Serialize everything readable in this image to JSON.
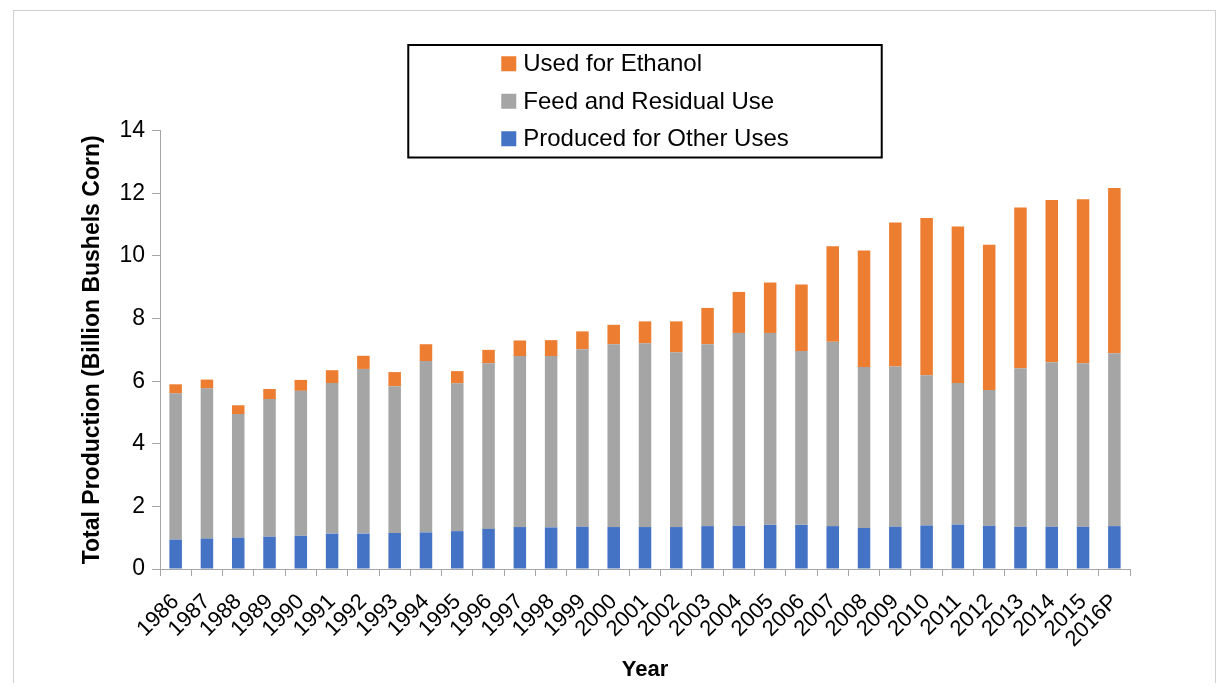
{
  "chart_data": {
    "type": "bar",
    "stacked": true,
    "xlabel": "Year",
    "ylabel": "Total Production (Billion Bushels Corn)",
    "categories": [
      "1986",
      "1987",
      "1988",
      "1989",
      "1990",
      "1991",
      "1992",
      "1993",
      "1994",
      "1995",
      "1996",
      "1997",
      "1998",
      "1999",
      "2000",
      "2001",
      "2002",
      "2003",
      "2004",
      "2005",
      "2006",
      "2007",
      "2008",
      "2009",
      "2010",
      "2011",
      "2012",
      "2013",
      "2014",
      "2015",
      "2016P"
    ],
    "series": [
      {
        "name": "Produced for Other Uses",
        "color": "#4472c4",
        "values": [
          0.94,
          0.97,
          1.0,
          1.03,
          1.06,
          1.13,
          1.13,
          1.15,
          1.17,
          1.21,
          1.28,
          1.34,
          1.33,
          1.35,
          1.34,
          1.34,
          1.34,
          1.37,
          1.38,
          1.41,
          1.41,
          1.37,
          1.31,
          1.35,
          1.39,
          1.42,
          1.38,
          1.35,
          1.35,
          1.35,
          1.37
        ]
      },
      {
        "name": "Feed and Residual Use",
        "color": "#a5a5a5",
        "values": [
          4.67,
          4.8,
          3.95,
          4.4,
          4.63,
          4.81,
          5.26,
          4.69,
          5.47,
          4.72,
          5.29,
          5.46,
          5.47,
          5.67,
          5.84,
          5.87,
          5.58,
          5.81,
          6.16,
          6.13,
          5.55,
          5.89,
          5.14,
          5.12,
          4.8,
          4.52,
          4.34,
          5.06,
          5.25,
          5.22,
          5.52
        ]
      },
      {
        "name": "Used for Ethanol",
        "color": "#ed7d31",
        "values": [
          0.29,
          0.28,
          0.28,
          0.32,
          0.35,
          0.41,
          0.42,
          0.45,
          0.54,
          0.39,
          0.43,
          0.5,
          0.51,
          0.57,
          0.62,
          0.7,
          0.99,
          1.16,
          1.31,
          1.61,
          2.13,
          3.05,
          3.72,
          4.6,
          5.02,
          5.0,
          4.64,
          5.14,
          5.19,
          5.24,
          5.28
        ]
      }
    ],
    "ylim": [
      0,
      14
    ],
    "yticks": [
      0,
      2,
      4,
      6,
      8,
      10,
      12,
      14
    ],
    "grid": false,
    "legend": "top"
  }
}
